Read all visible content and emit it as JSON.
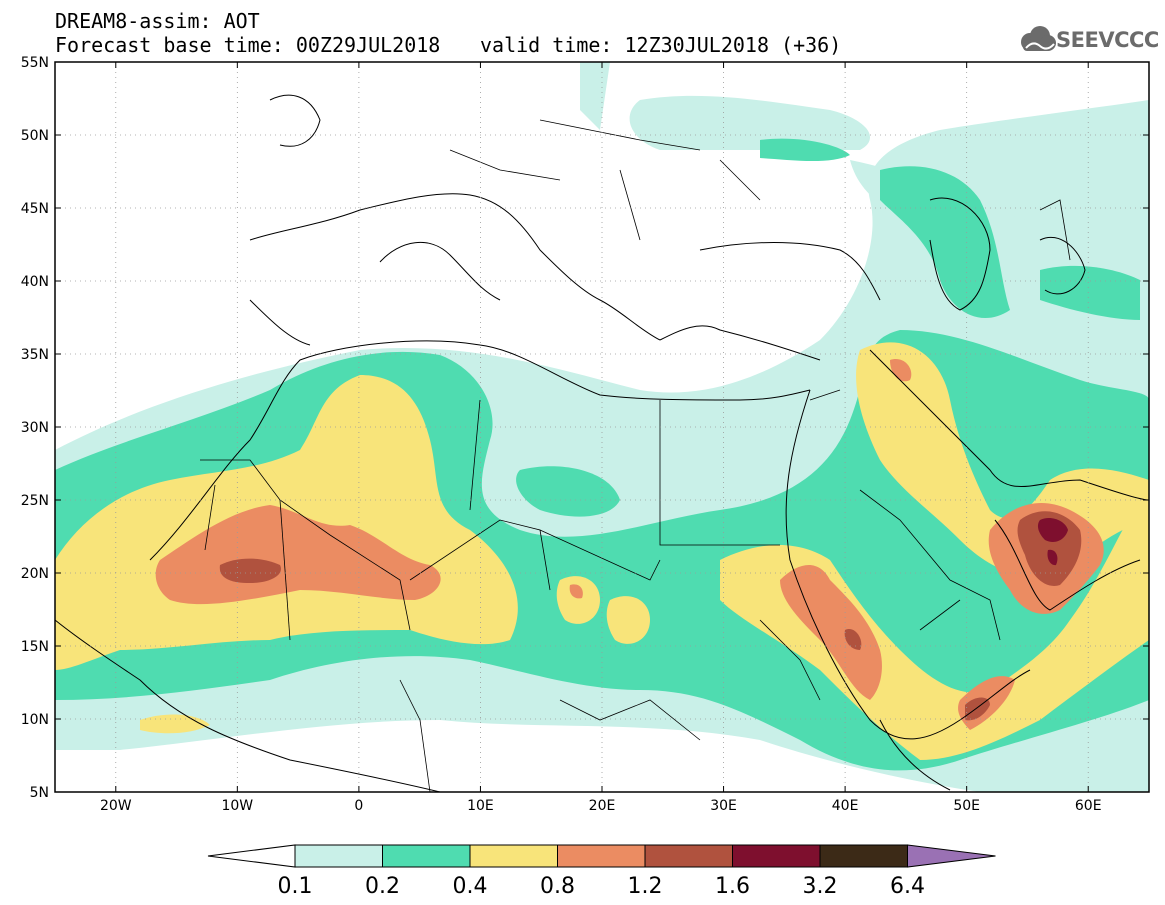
{
  "header": {
    "title": "DREAM8-assim: AOT",
    "base_time": "Forecast base time: 00Z29JUL2018",
    "valid_time": "valid time: 12Z30JUL2018 (+36)"
  },
  "logo": {
    "icon": "cloud-icon",
    "text": "SEEVCCC",
    "color": "#6b6b6b"
  },
  "map": {
    "lat_labels": [
      "55N",
      "50N",
      "45N",
      "40N",
      "35N",
      "30N",
      "25N",
      "20N",
      "15N",
      "10N",
      "5N"
    ],
    "lon_labels": [
      "20W",
      "10W",
      "0",
      "10E",
      "20E",
      "30E",
      "40E",
      "50E",
      "60E"
    ],
    "lon_range": [
      -25,
      65
    ],
    "lat_range": [
      5,
      55
    ]
  },
  "legend": {
    "labels": [
      "0.1",
      "0.2",
      "0.4",
      "0.8",
      "1.2",
      "1.6",
      "3.2",
      "6.4"
    ],
    "colors": [
      "#ffffff",
      "#c9f0e8",
      "#4fdcb0",
      "#f8e47a",
      "#eb8c62",
      "#b0523e",
      "#7e0f2e",
      "#3c2a17",
      "#9a71b4"
    ]
  }
}
